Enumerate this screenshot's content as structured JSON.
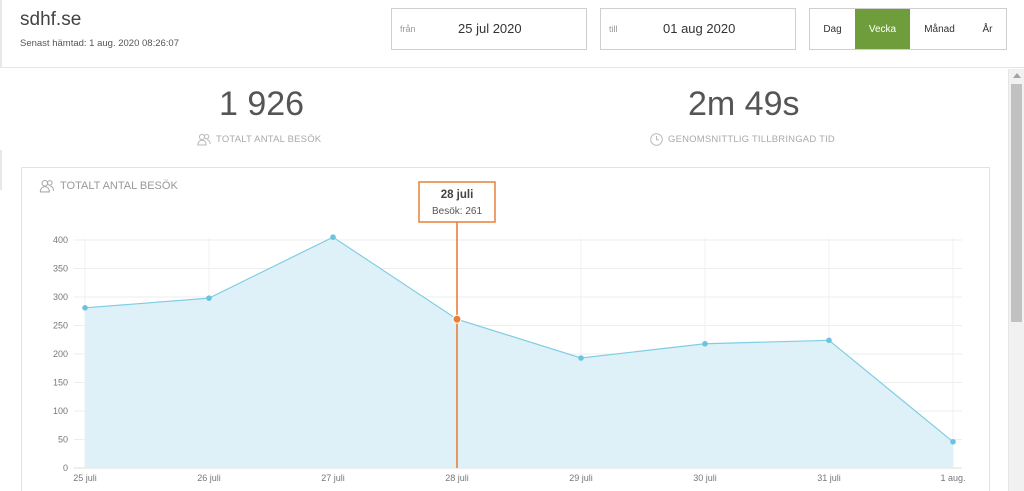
{
  "header": {
    "site": "sdhf.se",
    "fetched": "Senast hämtad: 1 aug. 2020 08:26:07",
    "from": {
      "label": "från",
      "value": "25 jul 2020"
    },
    "to": {
      "label": "till",
      "value": "01 aug 2020"
    },
    "period": [
      {
        "label": "Dag",
        "active": false
      },
      {
        "label": "Vecka",
        "active": true
      },
      {
        "label": "Månad",
        "active": false
      },
      {
        "label": "År",
        "active": false
      }
    ]
  },
  "stats": {
    "visits": {
      "value": "1 926",
      "label": "TOTALT ANTAL BESÖK",
      "icon": "users-icon"
    },
    "time": {
      "value": "2m 49s",
      "label": "GENOMSNITTLIG TILLBRINGAD TID",
      "icon": "clock-icon"
    }
  },
  "chart_title": "TOTALT ANTAL BESÖK",
  "tooltip": {
    "title": "28 juli",
    "label": "Besök: 261"
  },
  "colors": {
    "accent": "#6f9d3b",
    "line": "#7fcde3",
    "fill": "#dff1f8",
    "highlight": "#e8803a"
  },
  "chart_data": {
    "type": "area",
    "categories": [
      "25 juli",
      "26 juli",
      "27 juli",
      "28 juli",
      "29 juli",
      "30 juli",
      "31 juli",
      "1 aug."
    ],
    "series": [
      {
        "values": [
          281,
          298,
          405,
          261,
          193,
          218,
          224,
          46
        ]
      }
    ],
    "ylim": [
      0,
      400
    ],
    "yticks": [
      0,
      50,
      100,
      150,
      200,
      250,
      300,
      350,
      400
    ],
    "highlight_index": 3,
    "grid": true,
    "title": "TOTALT ANTAL BESÖK"
  }
}
